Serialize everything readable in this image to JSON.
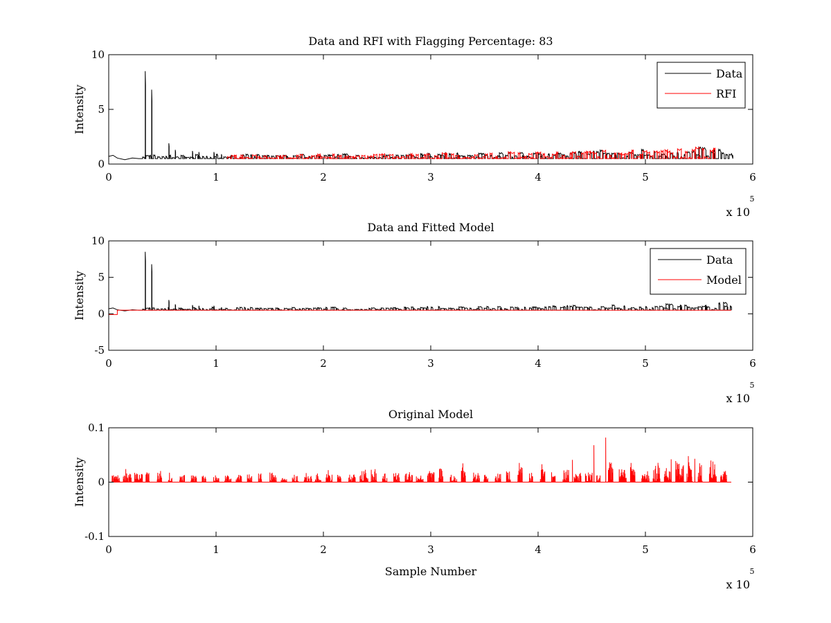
{
  "figure": {
    "background": "#ffffff",
    "colors": {
      "data": "#000000",
      "red": "#ff0000",
      "axis": "#000000"
    }
  },
  "chart_data": [
    {
      "type": "line",
      "title": "Data and RFI with Flagging Percentage: 83",
      "xlabel": "",
      "ylabel": "Intensity",
      "xlim": [
        0,
        600000
      ],
      "ylim": [
        0,
        10
      ],
      "xticks": [
        "0",
        "1",
        "2",
        "3",
        "4",
        "5",
        "6"
      ],
      "yticks": [
        "0",
        "5",
        "10"
      ],
      "x_multiplier": {
        "base": "x 10",
        "exponent": "5"
      },
      "legend": {
        "position": "top-right",
        "entries": [
          "Data",
          "RFI"
        ]
      },
      "series": [
        {
          "name": "Data",
          "color": "#000000",
          "baseline": 0.5,
          "end_x": 580000,
          "start_level": 0.7,
          "dip_x": 15000,
          "spikes": [
            {
              "x": 34000,
              "y": 8.5
            },
            {
              "x": 40000,
              "y": 6.8
            },
            {
              "x": 56000,
              "y": 1.9
            },
            {
              "x": 62000,
              "y": 1.3
            },
            {
              "x": 78000,
              "y": 1.2
            },
            {
              "x": 84000,
              "y": 1.1
            },
            {
              "x": 98000,
              "y": 1.1
            },
            {
              "x": 105000,
              "y": 0.9
            }
          ],
          "bursts_from": 3000,
          "bursts_count": 160,
          "bursts_seed": 11,
          "bursts_min": 0.55,
          "bursts_max_early": 0.9,
          "bursts_max_late": 1.7
        },
        {
          "name": "RFI",
          "color": "#ff0000",
          "baseline": 0.5,
          "start_x": 110000,
          "end_x": 565000,
          "bursts_count": 140,
          "bursts_seed": 23,
          "bursts_min": 0.55,
          "bursts_max_early": 0.9,
          "bursts_max_late": 1.7
        }
      ]
    },
    {
      "type": "line",
      "title": "Data and Fitted Model",
      "xlabel": "",
      "ylabel": "Intensity",
      "xlim": [
        0,
        600000
      ],
      "ylim": [
        -5,
        10
      ],
      "xticks": [
        "0",
        "1",
        "2",
        "3",
        "4",
        "5",
        "6"
      ],
      "yticks": [
        "-5",
        "0",
        "5",
        "10"
      ],
      "x_multiplier": {
        "base": "x 10",
        "exponent": "5"
      },
      "legend": {
        "position": "top-right",
        "entries": [
          "Data",
          "Model"
        ]
      },
      "series": [
        {
          "name": "Data",
          "color": "#000000",
          "baseline": 0.5,
          "end_x": 580000,
          "start_level": 0.7,
          "dip_x": 15000,
          "spikes": [
            {
              "x": 34000,
              "y": 8.5
            },
            {
              "x": 40000,
              "y": 6.8
            },
            {
              "x": 56000,
              "y": 1.9
            },
            {
              "x": 62000,
              "y": 1.3
            },
            {
              "x": 78000,
              "y": 1.2
            },
            {
              "x": 84000,
              "y": 1.1
            },
            {
              "x": 98000,
              "y": 1.1
            },
            {
              "x": 105000,
              "y": 0.9
            }
          ],
          "bursts_from": 3000,
          "bursts_count": 170,
          "bursts_seed": 11,
          "bursts_min": 0.55,
          "bursts_max_early": 0.9,
          "bursts_max_late": 1.6
        },
        {
          "name": "Model",
          "color": "#ff0000",
          "baseline": 0.5,
          "start_x": 0,
          "end_x": 580000,
          "step": {
            "x_end": 8000,
            "y": -0.1
          }
        }
      ]
    },
    {
      "type": "line",
      "title": "Original Model",
      "xlabel": "Sample Number",
      "ylabel": "Intensity",
      "xlim": [
        0,
        600000
      ],
      "ylim": [
        -0.1,
        0.1
      ],
      "xticks": [
        "0",
        "1",
        "2",
        "3",
        "4",
        "5",
        "6"
      ],
      "yticks": [
        "-0.1",
        "0",
        "0.1"
      ],
      "x_multiplier": {
        "base": "x 10",
        "exponent": "5"
      },
      "legend": null,
      "series": [
        {
          "name": "Original Model",
          "color": "#ff0000",
          "baseline": 0.0,
          "start_x": 1000,
          "end_x": 580000,
          "clusters_every": 10500,
          "clusters_seed": 7,
          "peak_early": 0.02,
          "peak_late": 0.045,
          "tall_peaks": [
            {
              "x": 452000,
              "y": 0.068
            },
            {
              "x": 463000,
              "y": 0.082
            },
            {
              "x": 432000,
              "y": 0.041
            },
            {
              "x": 540000,
              "y": 0.048
            },
            {
              "x": 546000,
              "y": 0.043
            },
            {
              "x": 524000,
              "y": 0.042
            }
          ]
        }
      ]
    }
  ]
}
